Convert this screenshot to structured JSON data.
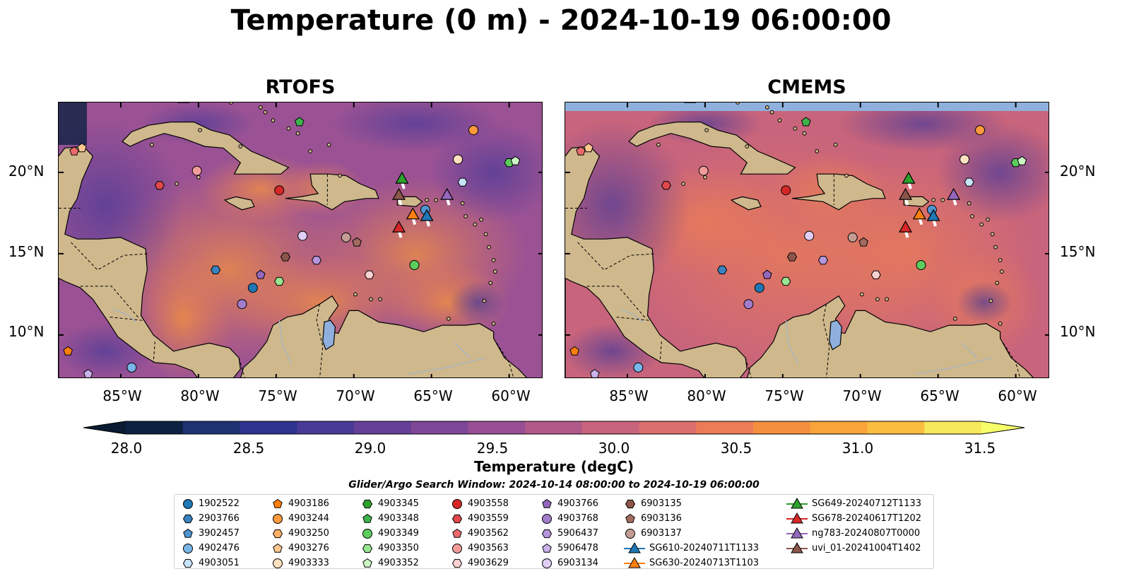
{
  "title": "Temperature (0 m) - 2024-10-19 06:00:00",
  "panels": [
    {
      "title": "RTOFS"
    },
    {
      "title": "CMEMS"
    }
  ],
  "lat_labels": [
    "20°N",
    "15°N",
    "10°N"
  ],
  "lon_labels": [
    "85°W",
    "80°W",
    "75°W",
    "70°W",
    "65°W",
    "60°W"
  ],
  "colorbar": {
    "label": "Temperature (degC)",
    "ticks": [
      "28.0",
      "28.5",
      "29.0",
      "29.5",
      "30.0",
      "30.5",
      "31.0",
      "31.5"
    ],
    "colors": [
      "#0d2242",
      "#1f3373",
      "#2e338f",
      "#4a3a97",
      "#653f98",
      "#7e4798",
      "#984f93",
      "#b15a8a",
      "#c8647c",
      "#db6e6e",
      "#ea7c57",
      "#f48f40",
      "#f8a43b",
      "#f9bd40",
      "#f6e95a"
    ],
    "range": [
      28.0,
      31.5
    ]
  },
  "search_window": "Glider/Argo Search Window: 2024-10-14 08:00:00 to 2024-10-19 06:00:00",
  "legend": [
    [
      {
        "label": "1902522",
        "marker": "circle",
        "color": "#1f77b4"
      },
      {
        "label": "2903766",
        "marker": "hexagon",
        "color": "#3a83c0"
      },
      {
        "label": "3902457",
        "marker": "pentagon",
        "color": "#4f94d0"
      },
      {
        "label": "4902476",
        "marker": "circle",
        "color": "#79b6e8"
      },
      {
        "label": "4903051",
        "marker": "hexagon",
        "color": "#c6e3f7"
      }
    ],
    [
      {
        "label": "4903186",
        "marker": "pentagon",
        "color": "#ff7f0e"
      },
      {
        "label": "4903244",
        "marker": "circle",
        "color": "#ff9a3d"
      },
      {
        "label": "4903250",
        "marker": "hexagon",
        "color": "#ffb066"
      },
      {
        "label": "4903276",
        "marker": "pentagon",
        "color": "#ffc890"
      },
      {
        "label": "4903333",
        "marker": "circle",
        "color": "#ffe0c0"
      }
    ],
    [
      {
        "label": "4903345",
        "marker": "hexagon",
        "color": "#2ca02c"
      },
      {
        "label": "4903348",
        "marker": "pentagon",
        "color": "#3cb44b"
      },
      {
        "label": "4903349",
        "marker": "circle",
        "color": "#5ccc5c"
      },
      {
        "label": "4903350",
        "marker": "hexagon",
        "color": "#98e690"
      },
      {
        "label": "4903352",
        "marker": "pentagon",
        "color": "#ccf5c4"
      }
    ],
    [
      {
        "label": "4903558",
        "marker": "circle",
        "color": "#d62728"
      },
      {
        "label": "4903559",
        "marker": "hexagon",
        "color": "#e0484a"
      },
      {
        "label": "4903562",
        "marker": "pentagon",
        "color": "#ea6a6c"
      },
      {
        "label": "4903563",
        "marker": "circle",
        "color": "#f29b9b"
      },
      {
        "label": "4903629",
        "marker": "hexagon",
        "color": "#fbd0d0"
      }
    ],
    [
      {
        "label": "4903766",
        "marker": "pentagon",
        "color": "#9467bd"
      },
      {
        "label": "4903768",
        "marker": "circle",
        "color": "#a37ccb"
      },
      {
        "label": "5906437",
        "marker": "hexagon",
        "color": "#b595dc"
      },
      {
        "label": "5906478",
        "marker": "pentagon",
        "color": "#cab2ea"
      },
      {
        "label": "6903134",
        "marker": "circle",
        "color": "#e0cef6"
      }
    ],
    [
      {
        "label": "6903135",
        "marker": "hexagon",
        "color": "#8c564b"
      },
      {
        "label": "6903136",
        "marker": "pentagon",
        "color": "#a36c60"
      },
      {
        "label": "6903137",
        "marker": "circle",
        "color": "#c49c94"
      },
      {
        "label": "SG610-20240711T1133",
        "marker": "triangle-line",
        "color": "#1f77b4"
      },
      {
        "label": "SG630-20240713T1103",
        "marker": "triangle-line",
        "color": "#ff7f0e"
      }
    ],
    [
      {
        "label": "SG649-20240712T1133",
        "marker": "triangle-line",
        "color": "#2ca02c"
      },
      {
        "label": "SG678-20240617T1202",
        "marker": "triangle-line",
        "color": "#d62728"
      },
      {
        "label": "ng783-20240807T0000",
        "marker": "triangle-line",
        "color": "#9467bd"
      },
      {
        "label": "uvi_01-20241004T1402",
        "marker": "triangle-line",
        "color": "#8c564b"
      }
    ]
  ],
  "stations": [
    {
      "lon": -88.0,
      "lat": 21.3,
      "marker": "pentagon",
      "color": "#ea6a6c"
    },
    {
      "lon": -87.5,
      "lat": 21.5,
      "marker": "pentagon",
      "color": "#ffc890"
    },
    {
      "lon": -80.1,
      "lat": 20.1,
      "marker": "circle",
      "color": "#f29b9b"
    },
    {
      "lon": -82.5,
      "lat": 19.2,
      "marker": "hexagon",
      "color": "#e0484a"
    },
    {
      "lon": -73.5,
      "lat": 23.1,
      "marker": "pentagon",
      "color": "#3cb44b"
    },
    {
      "lon": -62.3,
      "lat": 22.6,
      "marker": "circle",
      "color": "#ff9a3d"
    },
    {
      "lon": -63.3,
      "lat": 20.8,
      "marker": "circle",
      "color": "#ffe0c0"
    },
    {
      "lon": -63.0,
      "lat": 19.4,
      "marker": "hexagon",
      "color": "#c6e3f7"
    },
    {
      "lon": -60.0,
      "lat": 20.6,
      "marker": "hexagon",
      "color": "#5ccc5c"
    },
    {
      "lon": -59.6,
      "lat": 20.7,
      "marker": "pentagon",
      "color": "#ccf5c4"
    },
    {
      "lon": -74.8,
      "lat": 18.9,
      "marker": "circle",
      "color": "#d62728"
    },
    {
      "lon": -73.3,
      "lat": 16.1,
      "marker": "circle",
      "color": "#e0cef6"
    },
    {
      "lon": -70.5,
      "lat": 16.0,
      "marker": "circle",
      "color": "#c49c94"
    },
    {
      "lon": -69.8,
      "lat": 15.7,
      "marker": "pentagon",
      "color": "#a36c60"
    },
    {
      "lon": -74.4,
      "lat": 14.8,
      "marker": "hexagon",
      "color": "#8c564b"
    },
    {
      "lon": -72.4,
      "lat": 14.6,
      "marker": "hexagon",
      "color": "#b595dc"
    },
    {
      "lon": -78.9,
      "lat": 14.0,
      "marker": "hexagon",
      "color": "#3a83c0"
    },
    {
      "lon": -76.0,
      "lat": 13.7,
      "marker": "pentagon",
      "color": "#9467bd"
    },
    {
      "lon": -74.8,
      "lat": 13.3,
      "marker": "hexagon",
      "color": "#98e690"
    },
    {
      "lon": -69.0,
      "lat": 13.7,
      "marker": "hexagon",
      "color": "#fbd0d0"
    },
    {
      "lon": -66.1,
      "lat": 14.3,
      "marker": "circle",
      "color": "#5ccc5c"
    },
    {
      "lon": -76.5,
      "lat": 12.9,
      "marker": "circle",
      "color": "#1f77b4"
    },
    {
      "lon": -77.2,
      "lat": 11.9,
      "marker": "circle",
      "color": "#a37ccb"
    },
    {
      "lon": -88.4,
      "lat": 9.0,
      "marker": "pentagon",
      "color": "#ff7f0e"
    },
    {
      "lon": -84.3,
      "lat": 8.0,
      "marker": "circle",
      "color": "#79b6e8"
    },
    {
      "lon": -87.1,
      "lat": 7.6,
      "marker": "pentagon",
      "color": "#cab2ea"
    },
    {
      "lon": -65.4,
      "lat": 17.7,
      "marker": "circle",
      "color": "#4f94d0"
    }
  ],
  "gliders": [
    {
      "lon": -66.9,
      "lat": 19.6,
      "color": "#2ca02c"
    },
    {
      "lon": -67.1,
      "lat": 18.6,
      "color": "#8c564b"
    },
    {
      "lon": -64.0,
      "lat": 18.6,
      "color": "#9467bd"
    },
    {
      "lon": -66.2,
      "lat": 17.4,
      "color": "#ff7f0e"
    },
    {
      "lon": -65.3,
      "lat": 17.3,
      "color": "#1f77b4"
    },
    {
      "lon": -67.1,
      "lat": 16.6,
      "color": "#d62728"
    }
  ]
}
